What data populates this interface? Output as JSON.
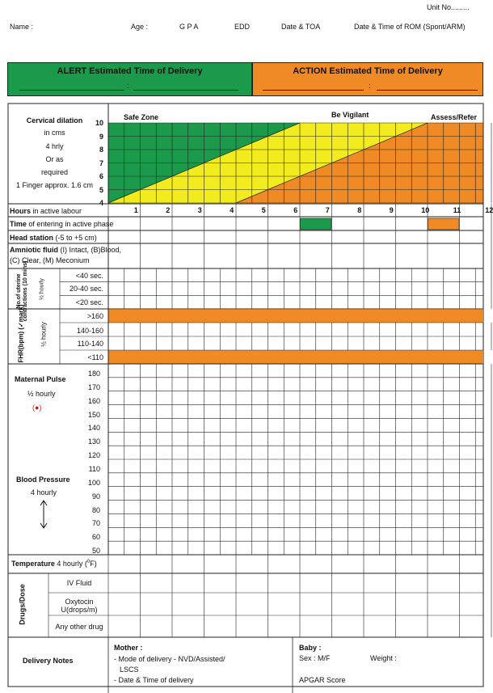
{
  "header": {
    "unit_no": "Unit No.........",
    "name": "Name :",
    "age": "Age :",
    "gpa": "G P A",
    "edd": "EDD",
    "date_toa": "Date & TOA",
    "rom": "Date & Time of ROM (Spont/ARM)"
  },
  "banner": {
    "alert_title": "ALERT Estimated Time of Delivery",
    "alert_color": "#1a9a4a",
    "action_title": "ACTION Estimated Time of Delivery",
    "action_color": "#f08a24"
  },
  "dilation": {
    "title": "Cervical dilation",
    "lines": [
      "in cms",
      "4 hrly",
      "Or as",
      "required",
      "1 Finger  approx. 1.6 cm"
    ],
    "scale": [
      "10",
      "9",
      "8",
      "7",
      "6",
      "5",
      "4"
    ],
    "zones": {
      "safe": "Safe Zone",
      "vigilant": "Be Vigilant",
      "assess": "Assess/Refer"
    },
    "zone_colors": {
      "green": "#1a9a4a",
      "yellow": "#f2ec1e",
      "orange": "#f08a24"
    }
  },
  "hours": {
    "label_bold": "Hours",
    "label_rest": " in active labour",
    "values": [
      "1",
      "2",
      "3",
      "4",
      "5",
      "6",
      "7",
      "8",
      "9",
      "10",
      "11",
      "12"
    ]
  },
  "rows": {
    "active_phase_bold": "Time",
    "active_phase_rest": " of entering in active phase",
    "active_phase_marks": {
      "alert_hour": 7,
      "action_hour": 11
    },
    "head_station_bold": "Head station",
    "head_station_rest": " (-5 to +5 cm)",
    "amniotic_bold": "Amniotic fluid",
    "amniotic_rest1": " (I) Intact, (B)Blood,",
    "amniotic_rest2": "(C) Clear, (M) Meconium"
  },
  "contractions": {
    "side_label": "No.of uterine contractions (10 mins)",
    "side_sub": "½ hourly",
    "rows": [
      "<40 sec.",
      "20-40 sec.",
      "<20 sec."
    ]
  },
  "fhr": {
    "side_label": "FHR(bpm) (✓mark)",
    "side_sub": "½ hourly",
    "rows": [
      ">160",
      "140-160",
      "110-140",
      "<110"
    ]
  },
  "maternal": {
    "pulse_title": "Maternal Pulse",
    "pulse_sub": "½ hourly",
    "pulse_marker": "(●)",
    "bp_title": "Blood Pressure",
    "bp_sub": "4 hourly",
    "scale": [
      "180",
      "170",
      "160",
      "150",
      "140",
      "130",
      "120",
      "110",
      "100",
      "90",
      "80",
      "70",
      "60",
      "50"
    ]
  },
  "temperature": {
    "label_bold": "Temperature",
    "label_rest": " 4 hourly (",
    "label_sup": "0",
    "label_end": "F)"
  },
  "drugs": {
    "side_label": "Drugs/Dose",
    "iv": "IV Fluid",
    "oxy1": "Oxytocin",
    "oxy2": "U(drops/m)",
    "other": "Any other drug"
  },
  "delivery": {
    "label": "Delivery Notes",
    "mother_title": "Mother :",
    "mother_l1": "- Mode of delivery - NVD/Assisted/",
    "mother_l2": "LSCS",
    "mother_l3": "- Date & Time of delivery",
    "baby_title": "Baby :",
    "baby_sex": "Sex : M/F",
    "baby_weight": "Weight :",
    "baby_apgar": "APGAR Score"
  }
}
